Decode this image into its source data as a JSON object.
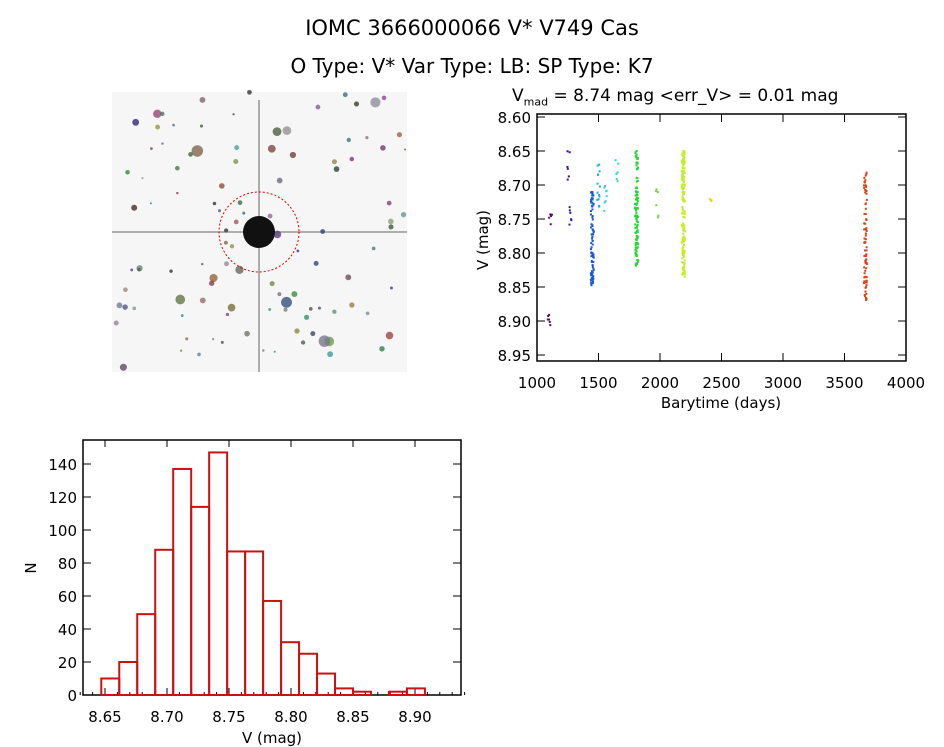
{
  "header": {
    "title_line1": "IOMC 3666000066     V* V749 Cas",
    "title_line2": "O Type: V*  Var Type: LB:  SP Type: K7"
  },
  "chart_data": [
    {
      "type": "scatter",
      "title_prefix": "V",
      "title_sub": "mad",
      "title_rest": " = 8.74 mag <err_V> = 0.01 mag",
      "xlabel": "Barytime (days)",
      "ylabel": "V (mag)",
      "xlim": [
        1000,
        4000
      ],
      "ylim": [
        8.95,
        8.6
      ],
      "y_inverted": true,
      "xticks": [
        "1000",
        "1500",
        "2000",
        "2500",
        "3000",
        "3500",
        "4000"
      ],
      "yticks": [
        "8.60",
        "8.65",
        "8.70",
        "8.75",
        "8.80",
        "8.85",
        "8.90",
        "8.95"
      ],
      "clusters": [
        {
          "x": 1100,
          "ymin": 8.89,
          "ymax": 8.91,
          "n": 6,
          "color": "#5a0a5a"
        },
        {
          "x": 1110,
          "ymin": 8.74,
          "ymax": 8.76,
          "n": 5,
          "color": "#5a0a6e"
        },
        {
          "x": 1255,
          "ymin": 8.65,
          "ymax": 8.71,
          "n": 6,
          "color": "#3a1090"
        },
        {
          "x": 1275,
          "ymin": 8.73,
          "ymax": 8.76,
          "n": 6,
          "color": "#2a20a8"
        },
        {
          "x": 1450,
          "ymin": 8.71,
          "ymax": 8.85,
          "n": 90,
          "color": "#1a5ad0"
        },
        {
          "x": 1500,
          "ymin": 8.67,
          "ymax": 8.74,
          "n": 14,
          "color": "#20a8e0"
        },
        {
          "x": 1555,
          "ymin": 8.7,
          "ymax": 8.74,
          "n": 8,
          "color": "#30d0e8"
        },
        {
          "x": 1650,
          "ymin": 8.65,
          "ymax": 8.7,
          "n": 6,
          "color": "#30d8c0"
        },
        {
          "x": 1810,
          "ymin": 8.65,
          "ymax": 8.82,
          "n": 110,
          "color": "#20d830"
        },
        {
          "x": 1975,
          "ymin": 8.7,
          "ymax": 8.75,
          "n": 6,
          "color": "#70d840"
        },
        {
          "x": 2190,
          "ymin": 8.65,
          "ymax": 8.835,
          "n": 160,
          "color": "#c0f020"
        },
        {
          "x": 2410,
          "ymin": 8.72,
          "ymax": 8.725,
          "n": 4,
          "color": "#f0d020"
        },
        {
          "x": 3670,
          "ymin": 8.68,
          "ymax": 8.87,
          "n": 80,
          "color": "#e04010"
        }
      ]
    },
    {
      "type": "bar",
      "title": "",
      "xlabel": "V (mag)",
      "ylabel": "N",
      "xlim": [
        8.63,
        8.94
      ],
      "ylim": [
        0,
        150
      ],
      "xticks": [
        "8.65",
        "8.70",
        "8.75",
        "8.80",
        "8.85",
        "8.90"
      ],
      "yticks": [
        "0",
        "20",
        "40",
        "60",
        "80",
        "100",
        "120",
        "140"
      ],
      "bin_start": 8.647,
      "bin_width": 0.0145,
      "values": [
        10,
        20,
        49,
        88,
        137,
        114,
        147,
        87,
        87,
        57,
        32,
        25,
        13,
        4,
        2,
        0,
        2,
        4
      ],
      "color": "#cc1111"
    }
  ]
}
